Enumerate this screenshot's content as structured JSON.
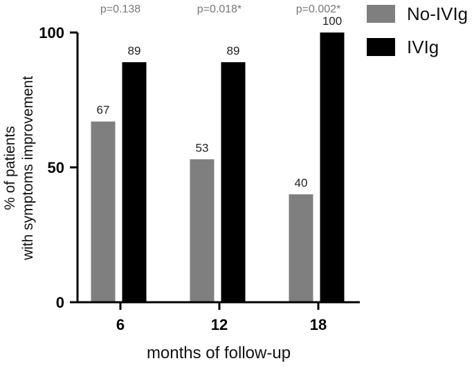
{
  "chart_data": {
    "type": "bar",
    "title": "",
    "xlabel": "months of follow-up",
    "ylabel_lines": [
      "% of patients",
      "with symptoms improvement"
    ],
    "categories": [
      "6",
      "12",
      "18"
    ],
    "ylim": [
      0,
      100
    ],
    "yticks": [
      0,
      50,
      100
    ],
    "grid": false,
    "legend_position": "top-right",
    "series": [
      {
        "name": "No-IVIg",
        "color": "#7f7f7f",
        "values": [
          67,
          53,
          40
        ],
        "labels": [
          "67",
          "53",
          "40"
        ]
      },
      {
        "name": "IVIg",
        "color": "#000000",
        "values": [
          89,
          89,
          100
        ],
        "labels": [
          "89",
          "89",
          "100"
        ]
      }
    ],
    "annotations": [
      "p=0.138",
      "p=0.018*",
      "p=0.002*"
    ]
  }
}
